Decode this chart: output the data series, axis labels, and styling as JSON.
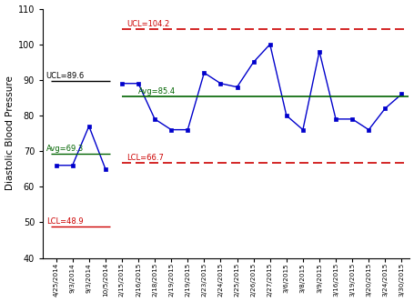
{
  "x_labels": [
    "4/25/2014",
    "9/3/2014",
    "9/3/2014",
    "10/5/2014",
    "2/15/2015",
    "2/16/2015",
    "2/18/2015",
    "2/19/2015",
    "2/19/2015",
    "2/23/2015",
    "2/24/2015",
    "2/25/2015",
    "2/26/2015",
    "2/27/2015",
    "3/6/2015",
    "3/8/2015",
    "3/9/2015",
    "3/16/2015",
    "3/19/2015",
    "3/20/2015",
    "3/24/2015",
    "3/30/2015"
  ],
  "y_values": [
    66,
    66,
    77,
    65,
    89,
    89,
    79,
    76,
    76,
    92,
    89,
    88,
    95,
    100,
    80,
    76,
    98,
    79,
    79,
    76,
    82,
    86
  ],
  "ucl1": 89.6,
  "avg1": 69.3,
  "lcl1": 48.9,
  "ucl2": 104.2,
  "avg2": 85.4,
  "lcl2": 66.7,
  "split_index": 4,
  "ylim": [
    40,
    110
  ],
  "yticks": [
    40,
    50,
    60,
    70,
    80,
    90,
    100,
    110
  ],
  "ylabel": "Diastolic Blood Pressure",
  "line_color": "#0000CC",
  "marker": "s",
  "marker_color": "#0000CC",
  "ucl1_color": "#000000",
  "avg1_color": "#006400",
  "lcl1_color": "#CC0000",
  "ucl2_color": "#CC0000",
  "avg2_color": "#006400",
  "lcl2_color": "#CC0000",
  "background_color": "#FFFFFF"
}
